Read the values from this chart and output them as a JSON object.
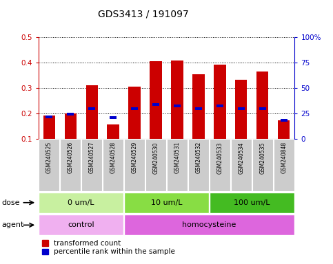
{
  "title": "GDS3413 / 191097",
  "samples": [
    "GSM240525",
    "GSM240526",
    "GSM240527",
    "GSM240528",
    "GSM240529",
    "GSM240530",
    "GSM240531",
    "GSM240532",
    "GSM240533",
    "GSM240534",
    "GSM240535",
    "GSM240848"
  ],
  "red_values": [
    0.19,
    0.2,
    0.31,
    0.155,
    0.305,
    0.405,
    0.407,
    0.352,
    0.39,
    0.332,
    0.365,
    0.172
  ],
  "blue_values": [
    0.185,
    0.197,
    0.218,
    0.182,
    0.218,
    0.235,
    0.228,
    0.218,
    0.228,
    0.218,
    0.218,
    0.172
  ],
  "ylim": [
    0.1,
    0.5
  ],
  "y2lim": [
    0,
    100
  ],
  "yticks": [
    0.1,
    0.2,
    0.3,
    0.4,
    0.5
  ],
  "y2ticks": [
    0,
    25,
    50,
    75,
    100
  ],
  "y2ticklabels": [
    "0",
    "25",
    "50",
    "75",
    "100%"
  ],
  "dose_groups": [
    {
      "label": "0 um/L",
      "start": 0,
      "end": 4,
      "color": "#c8f0a0"
    },
    {
      "label": "10 um/L",
      "start": 4,
      "end": 8,
      "color": "#88dd44"
    },
    {
      "label": "100 um/L",
      "start": 8,
      "end": 12,
      "color": "#44bb22"
    }
  ],
  "agent_groups": [
    {
      "label": "control",
      "start": 0,
      "end": 4,
      "color": "#f0b0f0"
    },
    {
      "label": "homocysteine",
      "start": 4,
      "end": 12,
      "color": "#dd66dd"
    }
  ],
  "dose_label": "dose",
  "agent_label": "agent",
  "legend_red": "transformed count",
  "legend_blue": "percentile rank within the sample",
  "bar_width": 0.55,
  "red_color": "#cc0000",
  "blue_color": "#0000cc",
  "title_color": "#000000",
  "left_axis_color": "#cc0000",
  "right_axis_color": "#0000cc",
  "sample_box_color": "#cccccc"
}
